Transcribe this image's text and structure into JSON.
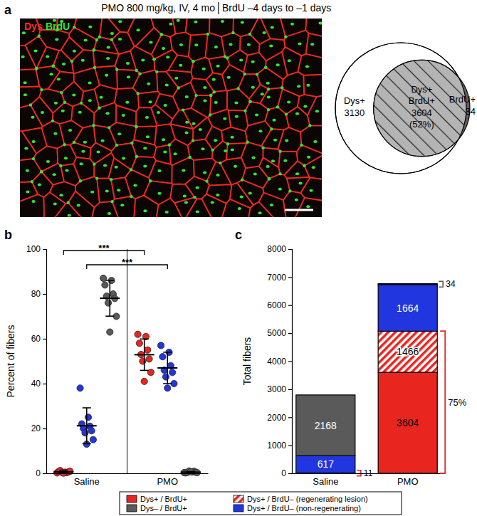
{
  "figure": {
    "header": [
      "PMO 800 mg/kg, IV, 4 mo",
      "BrdU –4 days to –1 days"
    ],
    "image_labels": [
      {
        "text": "Dys",
        "color": "#ff2a1f"
      },
      {
        "text": "BrdU",
        "color": "#33e633"
      }
    ]
  },
  "chart_data": [
    {
      "panel": "a",
      "type": "venn",
      "sets": [
        {
          "name": "Dys+",
          "value": 3130
        },
        {
          "name": "BrdU+",
          "value": 34
        }
      ],
      "overlap": {
        "name": [
          "Dys+",
          "BrdU+"
        ],
        "value": 3604,
        "percent": 52,
        "percent_label": "(52%)"
      }
    },
    {
      "panel": "b",
      "type": "strip",
      "categories": [
        "Saline",
        "PMO"
      ],
      "y_label": "Percent of fibers",
      "ylim": [
        0,
        100
      ],
      "yticks": [
        0,
        20,
        40,
        60,
        80,
        100
      ],
      "series": [
        {
          "color": "#e8251f",
          "values": [
            [
              0.2,
              0.5,
              0.8,
              0.3,
              1.2,
              0.6,
              0.4,
              0.9,
              0.1
            ],
            [
              62,
              61,
              58,
              55,
              53,
              51,
              50,
              45,
              41
            ]
          ],
          "mean": [
            0.6,
            52.9
          ],
          "sd": [
            0.4,
            7
          ]
        },
        {
          "color": "#2236e0",
          "values": [
            [
              38,
              25,
              22,
              21,
              20,
              19,
              18,
              15,
              13
            ],
            [
              57,
              54,
              52,
              48,
              46,
              45,
              43,
              40,
              38
            ]
          ],
          "mean": [
            21.2,
            47
          ],
          "sd": [
            8,
            7
          ]
        },
        {
          "color": "#5a5a5a",
          "values": [
            [
              87,
              86,
              84,
              80,
              79,
              78,
              76,
              70,
              63
            ],
            [
              0.3,
              0.6,
              0.2,
              0.9,
              0.4,
              0.5,
              1.0,
              0.3,
              0.7
            ]
          ],
          "mean": [
            78.1,
            0.5
          ],
          "sd": [
            8,
            0.3
          ]
        }
      ],
      "annotations": [
        "***",
        "***"
      ]
    },
    {
      "panel": "c",
      "type": "bar",
      "stacked": true,
      "data_labels": true,
      "legend": "bottom",
      "categories": [
        "Saline",
        "PMO"
      ],
      "y_label": "Total fibers",
      "ylim": [
        0,
        8000
      ],
      "yticks": [
        0,
        1000,
        2000,
        3000,
        4000,
        5000,
        6000,
        7000,
        8000
      ],
      "series": [
        {
          "name": "Dys+ / BrdU+",
          "color": "#e8251f",
          "line_style": "solid",
          "values": [
            11,
            3604
          ]
        },
        {
          "name": "Dys+ / BrdU– (regenerating lesion)",
          "color": "#e8251f",
          "line_style": "hatched",
          "values": [
            null,
            1466
          ]
        },
        {
          "name": "Dys+ / BrdU– (non-regenerating)",
          "color": "#2236e0",
          "line_style": "solid",
          "values": [
            617,
            1664
          ]
        },
        {
          "name": "Dys– / BrdU+",
          "color": "#5a5a5a",
          "line_style": "solid",
          "values": [
            2168,
            34
          ]
        }
      ],
      "annotations": [
        {
          "text": "75%",
          "value": 75
        }
      ]
    }
  ]
}
